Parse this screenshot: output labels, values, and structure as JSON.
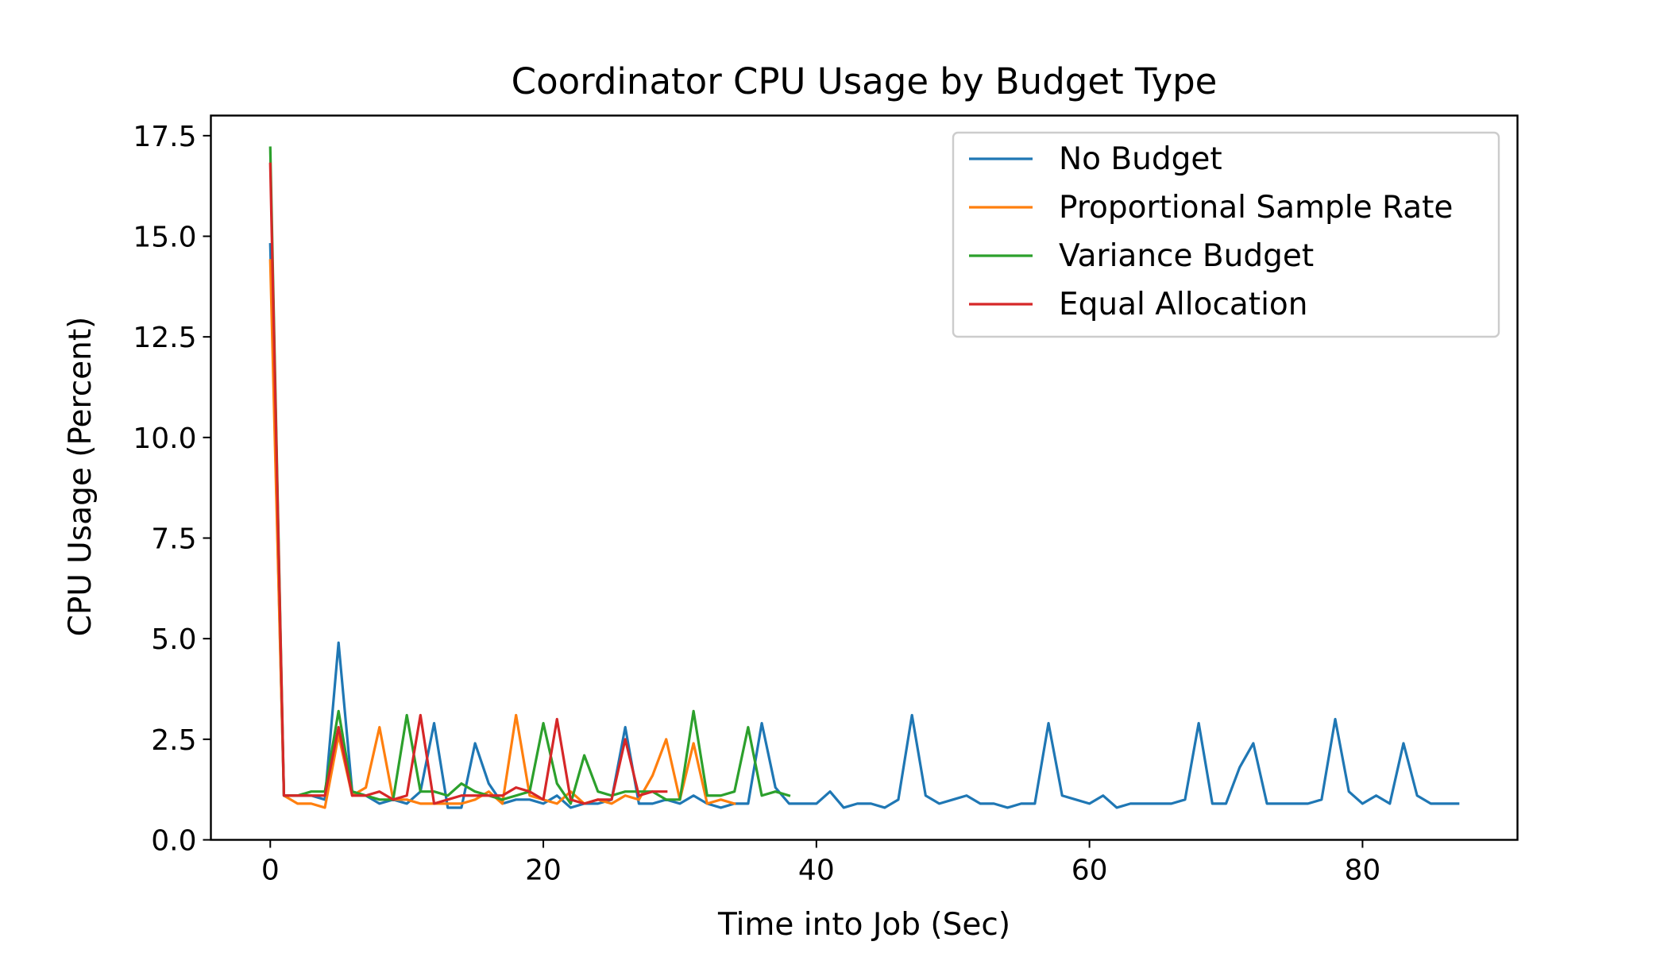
{
  "chart_data": {
    "type": "line",
    "title": "Coordinator CPU Usage by Budget Type",
    "xlabel": "Time into Job (Sec)",
    "ylabel": "CPU Usage (Percent)",
    "xlim": [
      -4.35,
      91.35
    ],
    "ylim": [
      0,
      18.0
    ],
    "xticks": [
      0,
      20,
      40,
      60,
      80
    ],
    "xtick_labels": [
      "0",
      "20",
      "40",
      "60",
      "80"
    ],
    "yticks": [
      0,
      2.5,
      5,
      7.5,
      10,
      12.5,
      15,
      17.5
    ],
    "ytick_labels": [
      "0.0",
      "2.5",
      "5.0",
      "7.5",
      "10.0",
      "12.5",
      "15.0",
      "17.5"
    ],
    "grid": false,
    "legend_position": "top-right",
    "series": [
      {
        "name": "No Budget",
        "color": "#1f77b4",
        "x": [
          0,
          1,
          2,
          3,
          4,
          5,
          6,
          7,
          8,
          9,
          10,
          11,
          12,
          13,
          14,
          15,
          16,
          17,
          18,
          19,
          20,
          21,
          22,
          23,
          24,
          25,
          26,
          27,
          28,
          29,
          30,
          31,
          32,
          33,
          34,
          35,
          36,
          37,
          38,
          39,
          40,
          41,
          42,
          43,
          44,
          45,
          46,
          47,
          48,
          49,
          50,
          51,
          52,
          53,
          54,
          55,
          56,
          57,
          58,
          59,
          60,
          61,
          62,
          63,
          64,
          65,
          66,
          67,
          68,
          69,
          70,
          71,
          72,
          73,
          74,
          75,
          76,
          77,
          78,
          79,
          80,
          81,
          82,
          83,
          84,
          85,
          86,
          87
        ],
        "y": [
          14.8,
          1.1,
          1.1,
          1.1,
          1.0,
          4.9,
          1.2,
          1.1,
          0.9,
          1.0,
          0.9,
          1.2,
          2.9,
          0.8,
          0.8,
          2.4,
          1.4,
          0.9,
          1.0,
          1.0,
          0.9,
          1.1,
          0.8,
          0.9,
          0.9,
          1.0,
          2.8,
          0.9,
          0.9,
          1.0,
          0.9,
          1.1,
          0.9,
          0.8,
          0.9,
          0.9,
          2.9,
          1.3,
          0.9,
          0.9,
          0.9,
          1.2,
          0.8,
          0.9,
          0.9,
          0.8,
          1.0,
          3.1,
          1.1,
          0.9,
          1.0,
          1.1,
          0.9,
          0.9,
          0.8,
          0.9,
          0.9,
          2.9,
          1.1,
          1.0,
          0.9,
          1.1,
          0.8,
          0.9,
          0.9,
          0.9,
          0.9,
          1.0,
          2.9,
          0.9,
          0.9,
          1.8,
          2.4,
          0.9,
          0.9,
          0.9,
          0.9,
          1.0,
          3.0,
          1.2,
          0.9,
          1.1,
          0.9,
          2.4,
          1.1,
          0.9,
          0.9,
          0.9
        ]
      },
      {
        "name": "Proportional Sample Rate",
        "color": "#ff7f0e",
        "x": [
          0,
          1,
          2,
          3,
          4,
          5,
          6,
          7,
          8,
          9,
          10,
          11,
          12,
          13,
          14,
          15,
          16,
          17,
          18,
          19,
          20,
          21,
          22,
          23,
          24,
          25,
          26,
          27,
          28,
          29,
          30,
          31,
          32,
          33,
          34
        ],
        "y": [
          14.4,
          1.1,
          0.9,
          0.9,
          0.8,
          2.6,
          1.1,
          1.3,
          2.8,
          1.0,
          1.0,
          0.9,
          0.9,
          0.9,
          0.9,
          1.0,
          1.2,
          0.9,
          3.1,
          1.1,
          1.0,
          0.9,
          1.2,
          0.9,
          1.0,
          0.9,
          1.1,
          1.0,
          1.6,
          2.5,
          1.0,
          2.4,
          0.9,
          1.0,
          0.9
        ]
      },
      {
        "name": "Variance Budget",
        "color": "#2ca02c",
        "x": [
          0,
          1,
          2,
          3,
          4,
          5,
          6,
          7,
          8,
          9,
          10,
          11,
          12,
          13,
          14,
          15,
          16,
          17,
          18,
          19,
          20,
          21,
          22,
          23,
          24,
          25,
          26,
          27,
          28,
          29,
          30,
          31,
          32,
          33,
          34,
          35,
          36,
          37,
          38
        ],
        "y": [
          17.2,
          1.1,
          1.1,
          1.2,
          1.2,
          3.2,
          1.2,
          1.1,
          1.0,
          1.0,
          3.1,
          1.2,
          1.2,
          1.1,
          1.4,
          1.2,
          1.1,
          1.0,
          1.1,
          1.2,
          2.9,
          1.4,
          0.9,
          2.1,
          1.2,
          1.1,
          1.2,
          1.2,
          1.2,
          1.0,
          1.0,
          3.2,
          1.1,
          1.1,
          1.2,
          2.8,
          1.1,
          1.2,
          1.1
        ]
      },
      {
        "name": "Equal Allocation",
        "color": "#d62728",
        "x": [
          0,
          1,
          2,
          3,
          4,
          5,
          6,
          7,
          8,
          9,
          10,
          11,
          12,
          13,
          14,
          15,
          16,
          17,
          18,
          19,
          20,
          21,
          22,
          23,
          24,
          25,
          26,
          27,
          28,
          29
        ],
        "y": [
          16.8,
          1.1,
          1.1,
          1.1,
          1.1,
          2.8,
          1.1,
          1.1,
          1.2,
          1.0,
          1.1,
          3.1,
          0.9,
          1.0,
          1.1,
          1.1,
          1.1,
          1.1,
          1.3,
          1.2,
          1.0,
          3.0,
          1.0,
          0.9,
          1.0,
          1.0,
          2.5,
          1.1,
          1.2,
          1.2
        ]
      }
    ]
  }
}
